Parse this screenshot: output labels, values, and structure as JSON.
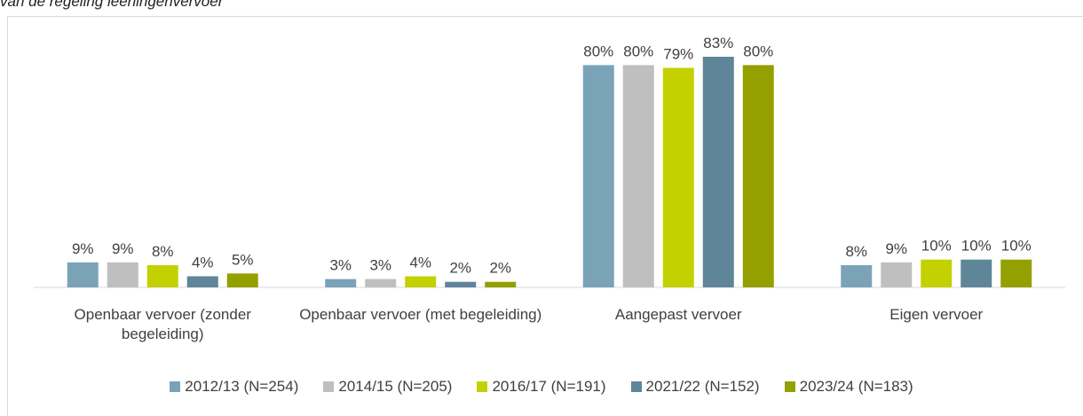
{
  "chart_data": {
    "type": "bar",
    "title": "van de regeling leerlingenvervoer",
    "categories": [
      "Openbaar vervoer (zonder begeleiding)",
      "Openbaar vervoer (met begeleiding)",
      "Aangepast vervoer",
      "Eigen vervoer"
    ],
    "series": [
      {
        "name": "2012/13 (N=254)",
        "color": "#7aa3b8",
        "values": [
          9,
          3,
          80,
          8
        ],
        "value_labels": [
          "9%",
          "3%",
          "80%",
          "8%"
        ]
      },
      {
        "name": "2014/15 (N=205)",
        "color": "#bfbfbf",
        "values": [
          9,
          3,
          80,
          9
        ],
        "value_labels": [
          "9%",
          "3%",
          "80%",
          "9%"
        ]
      },
      {
        "name": "2016/17 (N=191)",
        "color": "#c3d100",
        "values": [
          8,
          4,
          79,
          10
        ],
        "value_labels": [
          "8%",
          "4%",
          "79%",
          "10%"
        ]
      },
      {
        "name": "2021/22 (N=152)",
        "color": "#5f8599",
        "values": [
          4,
          2,
          83,
          10
        ],
        "value_labels": [
          "4%",
          "2%",
          "83%",
          "10%"
        ]
      },
      {
        "name": "2023/24 (N=183)",
        "color": "#949f00",
        "values": [
          5,
          2,
          80,
          10
        ],
        "value_labels": [
          "5%",
          "2%",
          "80%",
          "10%"
        ]
      }
    ],
    "legend": "bottom"
  }
}
